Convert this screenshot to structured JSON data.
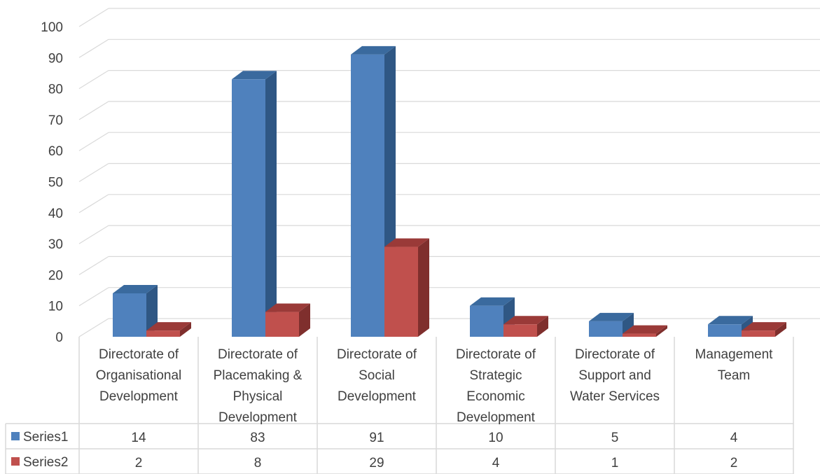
{
  "chart_data": {
    "type": "bar",
    "subtype": "3d-clustered-column-with-data-table",
    "categories": [
      "Directorate of Organisational Development",
      "Directorate of Placemaking & Physical Development",
      "Directorate of Social Development",
      "Directorate of Strategic Economic Development",
      "Directorate of Support and Water Services",
      "Management Team"
    ],
    "category_lines": [
      [
        "Directorate of",
        "Organisational",
        "Development"
      ],
      [
        "Directorate of",
        "Placemaking &",
        "Physical",
        "Development"
      ],
      [
        "Directorate of",
        "Social",
        "Development"
      ],
      [
        "Directorate of",
        "Strategic",
        "Economic",
        "Development"
      ],
      [
        "Directorate of",
        "Support and",
        "Water Services"
      ],
      [
        "Management",
        "Team"
      ]
    ],
    "series": [
      {
        "name": "Series1",
        "values": [
          14,
          83,
          91,
          10,
          5,
          4
        ],
        "color": "#4f81bd",
        "side_color": "#2f5784",
        "top_color": "#3a6a9e"
      },
      {
        "name": "Series2",
        "values": [
          2,
          8,
          29,
          4,
          1,
          2
        ],
        "color": "#c0504d",
        "side_color": "#7f2f2d",
        "top_color": "#9a3a38"
      }
    ],
    "ylim": [
      0,
      100
    ],
    "yticks": [
      0,
      10,
      20,
      30,
      40,
      50,
      60,
      70,
      80,
      90,
      100
    ],
    "grid": true,
    "legend": "data-table-left",
    "title": "",
    "xlabel": "",
    "ylabel": ""
  }
}
